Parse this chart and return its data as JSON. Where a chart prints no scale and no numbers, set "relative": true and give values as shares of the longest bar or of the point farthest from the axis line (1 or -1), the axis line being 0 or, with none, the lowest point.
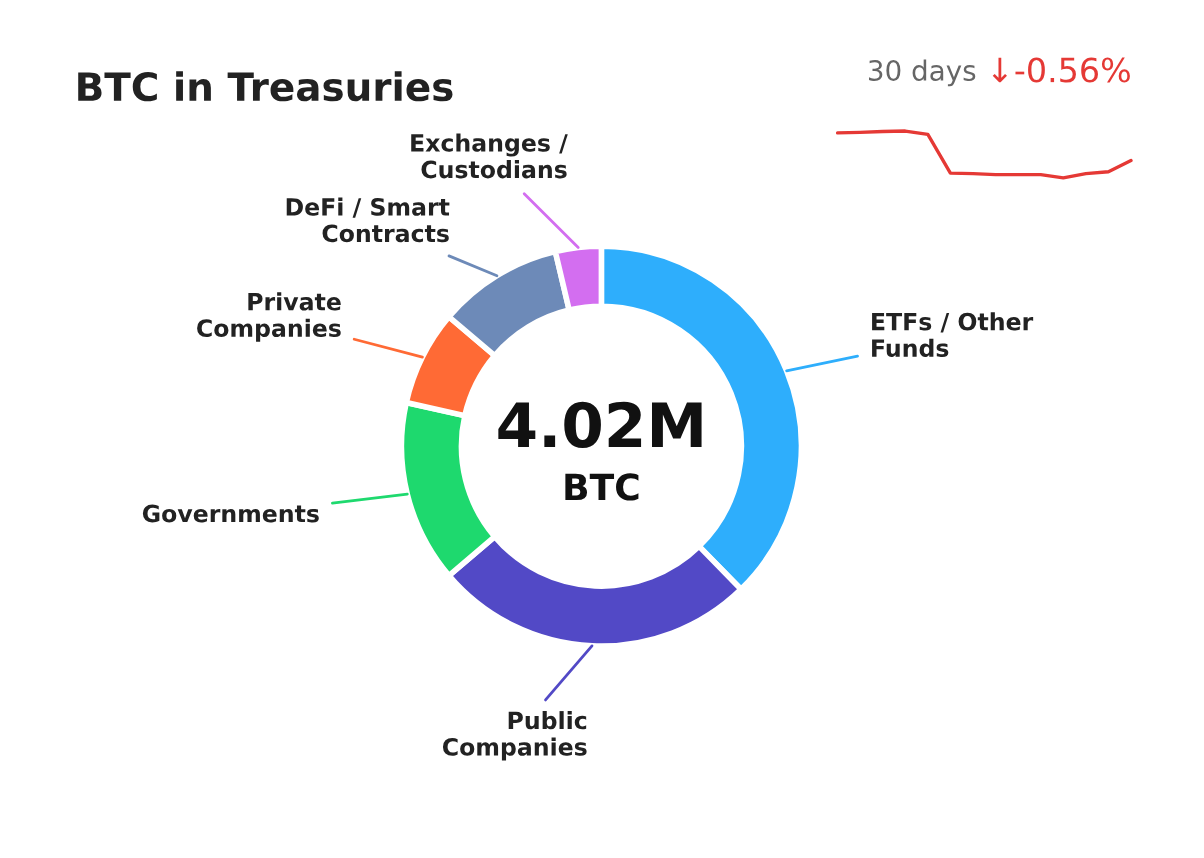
{
  "chart_data": [
    {
      "type": "donut",
      "title": "BTC in Treasuries",
      "categories": [
        "ETFs / Other\nFunds",
        "Public\nCompanies",
        "Governments",
        "Private\nCompanies",
        "DeFi / Smart\nContracts",
        "Exchanges /\nCustodians"
      ],
      "values": [
        37.7,
        26.1,
        14.7,
        7.7,
        10.1,
        3.7
      ],
      "colors": [
        "#2eaefc",
        "#5249c6",
        "#1ed96e",
        "#ff6a35",
        "#6d8ab8",
        "#d36ef0"
      ],
      "annotations": [
        "4.02M",
        "BTC"
      ]
    },
    {
      "type": "line",
      "relative": true,
      "title": "30 days",
      "annotations": [
        "↓-0.56%"
      ],
      "categories": [
        null,
        null,
        null,
        null,
        null,
        null,
        null,
        null,
        null,
        null,
        null,
        null,
        null,
        null
      ],
      "series": [
        {
          "color": "#e53935",
          "values": [
            0.96,
            0.97,
            0.99,
            1.0,
            0.93,
            0.1,
            0.09,
            0.07,
            0.07,
            0.07,
            0.0,
            0.09,
            0.13,
            0.37
          ]
        }
      ]
    }
  ]
}
